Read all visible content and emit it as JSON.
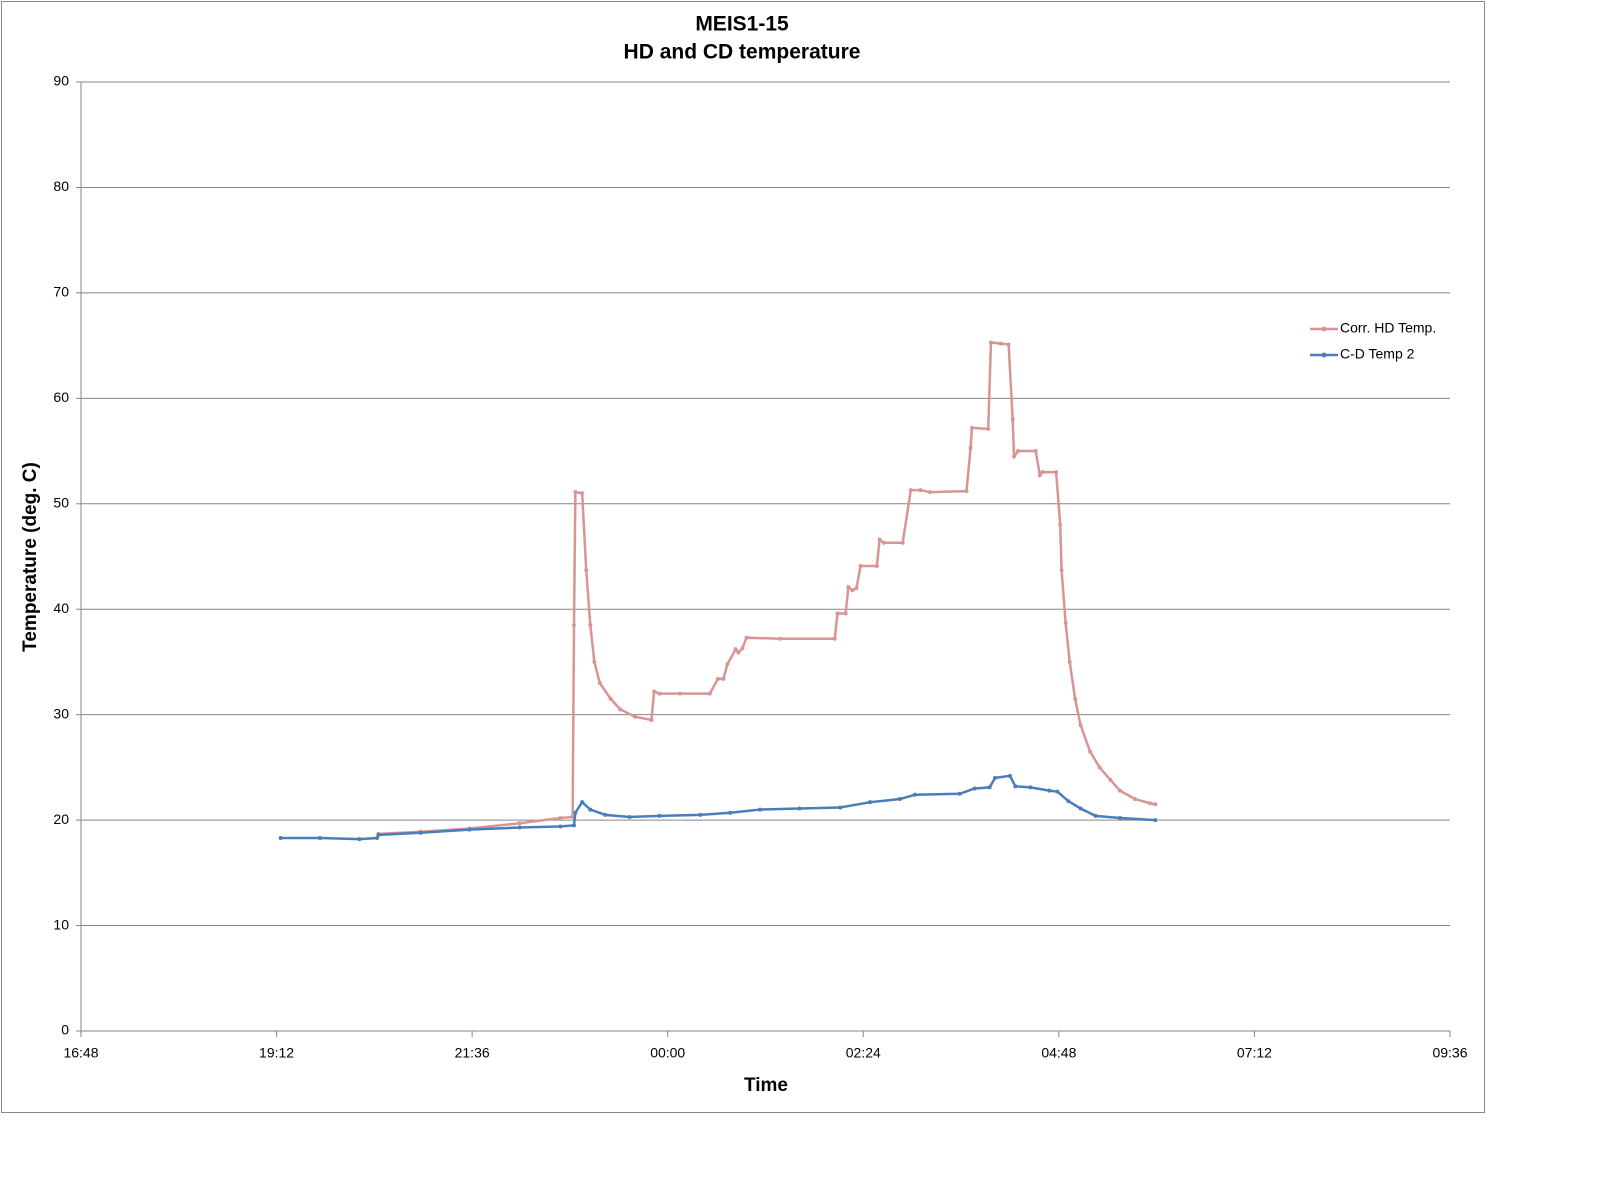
{
  "chart_data": {
    "type": "line",
    "title": "MEIS1-15",
    "subtitle": "HD and CD temperature",
    "x_label": "Time",
    "y_label": "Temperature (deg. C)",
    "xlim": [
      1008,
      2016
    ],
    "xticks": [
      {
        "value": 1008,
        "label": "16:48"
      },
      {
        "value": 1152,
        "label": "19:12"
      },
      {
        "value": 1296,
        "label": "21:36"
      },
      {
        "value": 1440,
        "label": "00:00"
      },
      {
        "value": 1584,
        "label": "02:24"
      },
      {
        "value": 1728,
        "label": "04:48"
      },
      {
        "value": 1872,
        "label": "07:12"
      },
      {
        "value": 2016,
        "label": "09:36"
      }
    ],
    "ylim": [
      0,
      90
    ],
    "yticks": [
      0,
      10,
      20,
      30,
      40,
      50,
      60,
      70,
      80,
      90
    ],
    "grid": true,
    "legend": "right",
    "series": [
      {
        "name": "Corr. HD Temp.",
        "color": "#d99594",
        "x": [
          1227,
          1258,
          1294,
          1331,
          1361,
          1370,
          1371,
          1372,
          1377,
          1380,
          1383,
          1386,
          1390,
          1398,
          1405,
          1416,
          1428,
          1430,
          1434,
          1449,
          1471,
          1477,
          1481,
          1484,
          1490,
          1492,
          1495,
          1498,
          1523,
          1563,
          1565,
          1571,
          1573,
          1576,
          1579,
          1582,
          1594,
          1596,
          1599,
          1613,
          1619,
          1626,
          1633,
          1660,
          1663,
          1664,
          1676,
          1678,
          1685,
          1691,
          1694,
          1695,
          1698,
          1711,
          1714,
          1716,
          1726,
          1729,
          1730,
          1733,
          1736,
          1740,
          1744,
          1751,
          1758,
          1766,
          1773,
          1784,
          1795,
          1799
        ],
        "values": [
          18.7,
          18.9,
          19.2,
          19.7,
          20.2,
          20.3,
          38.5,
          51.1,
          51.0,
          43.7,
          38.5,
          35,
          33,
          31.5,
          30.5,
          29.8,
          29.5,
          32.2,
          32.0,
          32.0,
          32.0,
          33.4,
          33.4,
          34.8,
          36.2,
          35.9,
          36.3,
          37.3,
          37.2,
          37.2,
          39.6,
          39.6,
          42.1,
          41.8,
          42.0,
          44.1,
          44.1,
          46.6,
          46.3,
          46.3,
          51.3,
          51.3,
          51.1,
          51.2,
          55.3,
          57.2,
          57.1,
          65.3,
          65.2,
          65.1,
          58,
          54.5,
          55.0,
          55.0,
          52.7,
          53.0,
          53.0,
          48,
          43.7,
          38.7,
          35,
          31.5,
          29,
          26.5,
          25,
          23.8,
          22.8,
          22.0,
          21.6,
          21.5
        ]
      },
      {
        "name": "C-D Temp 2",
        "color": "#4a7ebb",
        "x": [
          1155,
          1184,
          1213,
          1226,
          1227,
          1258,
          1294,
          1331,
          1361,
          1371,
          1372,
          1377,
          1383,
          1394,
          1412,
          1434,
          1464,
          1486,
          1508,
          1537,
          1567,
          1589,
          1611,
          1622,
          1655,
          1666,
          1677,
          1681,
          1692,
          1696,
          1707,
          1721,
          1727,
          1735,
          1744,
          1755,
          1773,
          1799
        ],
        "values": [
          18.3,
          18.3,
          18.2,
          18.3,
          18.6,
          18.8,
          19.1,
          19.3,
          19.4,
          19.5,
          20.7,
          21.7,
          21.0,
          20.5,
          20.3,
          20.4,
          20.5,
          20.7,
          21.0,
          21.1,
          21.2,
          21.7,
          22.0,
          22.4,
          22.5,
          23.0,
          23.1,
          24.0,
          24.2,
          23.2,
          23.1,
          22.8,
          22.7,
          21.8,
          21.1,
          20.4,
          20.2,
          20.0
        ]
      }
    ]
  }
}
